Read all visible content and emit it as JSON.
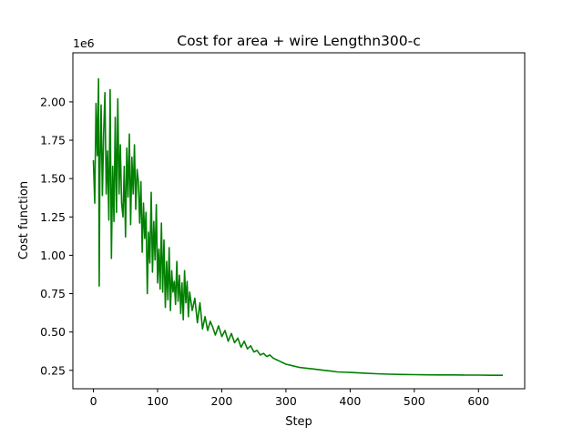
{
  "chart_data": {
    "type": "line",
    "title": "Cost for area + wire Lengthn300-c",
    "xlabel": "Step",
    "ylabel": "Cost function",
    "y_offset_label": "1e6",
    "xlim": [
      -32,
      672
    ],
    "ylim": [
      130000,
      2320000
    ],
    "grid": false,
    "x_ticks": [
      0,
      100,
      200,
      300,
      400,
      500,
      600
    ],
    "x_tick_labels": [
      "0",
      "100",
      "200",
      "300",
      "400",
      "500",
      "600"
    ],
    "y_ticks": [
      250000,
      500000,
      750000,
      1000000,
      1250000,
      1500000,
      1750000,
      2000000
    ],
    "y_tick_labels": [
      "0.25",
      "0.50",
      "0.75",
      "1.00",
      "1.25",
      "1.50",
      "1.75",
      "2.00"
    ],
    "series": [
      {
        "color": "#008000",
        "x": [
          0,
          2,
          4,
          6,
          8,
          9,
          10,
          12,
          14,
          16,
          18,
          20,
          22,
          24,
          26,
          28,
          30,
          32,
          34,
          36,
          38,
          40,
          42,
          44,
          46,
          48,
          50,
          52,
          54,
          56,
          58,
          60,
          62,
          64,
          66,
          68,
          70,
          72,
          74,
          76,
          78,
          80,
          82,
          84,
          86,
          88,
          90,
          92,
          94,
          96,
          98,
          100,
          102,
          104,
          106,
          108,
          110,
          112,
          114,
          116,
          118,
          120,
          122,
          124,
          126,
          128,
          130,
          132,
          134,
          136,
          138,
          140,
          142,
          144,
          146,
          148,
          150,
          154,
          158,
          162,
          166,
          170,
          174,
          178,
          182,
          186,
          190,
          195,
          200,
          205,
          210,
          215,
          220,
          225,
          230,
          235,
          240,
          245,
          250,
          255,
          260,
          265,
          270,
          275,
          280,
          285,
          290,
          295,
          300,
          310,
          320,
          330,
          340,
          350,
          360,
          370,
          380,
          400,
          420,
          440,
          460,
          480,
          500,
          520,
          540,
          560,
          580,
          600,
          620,
          638
        ],
        "values": [
          1620000,
          1340000,
          1990000,
          1650000,
          2150000,
          800000,
          1510000,
          1980000,
          1390000,
          1800000,
          2060000,
          1400000,
          1680000,
          1230000,
          2080000,
          980000,
          1580000,
          1220000,
          1900000,
          1280000,
          2020000,
          1400000,
          1720000,
          1340000,
          1250000,
          1580000,
          1120000,
          1700000,
          1380000,
          1790000,
          1200000,
          1640000,
          1400000,
          1720000,
          1300000,
          1560000,
          1480000,
          1210000,
          1480000,
          1020000,
          1340000,
          1110000,
          1280000,
          750000,
          1150000,
          950000,
          1410000,
          890000,
          1220000,
          970000,
          1330000,
          820000,
          1040000,
          780000,
          1210000,
          760000,
          1100000,
          660000,
          960000,
          710000,
          1050000,
          640000,
          900000,
          760000,
          830000,
          680000,
          960000,
          700000,
          870000,
          620000,
          820000,
          580000,
          900000,
          690000,
          830000,
          600000,
          760000,
          640000,
          720000,
          560000,
          690000,
          520000,
          600000,
          510000,
          570000,
          530000,
          480000,
          540000,
          470000,
          510000,
          440000,
          490000,
          430000,
          460000,
          400000,
          440000,
          390000,
          410000,
          370000,
          380000,
          350000,
          360000,
          340000,
          350000,
          330000,
          320000,
          310000,
          300000,
          290000,
          280000,
          270000,
          265000,
          260000,
          255000,
          250000,
          245000,
          240000,
          236000,
          232000,
          228000,
          225000,
          223000,
          222000,
          221000,
          220000,
          220000,
          219000,
          219000,
          218000,
          218000
        ]
      }
    ]
  }
}
